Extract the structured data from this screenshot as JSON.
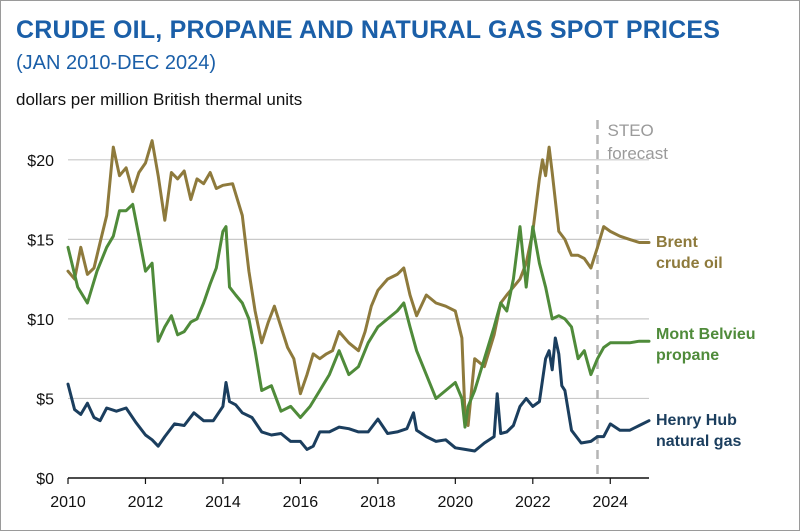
{
  "header": {
    "title": "CRUDE OIL, PROPANE AND NATURAL GAS SPOT PRICES",
    "subtitle": "(JAN 2010-DEC 2024)",
    "unit": "dollars per million British thermal units"
  },
  "chart_data": {
    "type": "line",
    "title": "CRUDE OIL, PROPANE AND NATURAL GAS SPOT PRICES",
    "subtitle": "(JAN 2010-DEC 2024)",
    "ylabel": "dollars per million British thermal units",
    "xlim": [
      2010,
      2025
    ],
    "ylim": [
      0,
      22
    ],
    "x_ticks": [
      "2010",
      "2012",
      "2014",
      "2016",
      "2018",
      "2020",
      "2022",
      "2024"
    ],
    "y_ticks": [
      "$0",
      "$5",
      "$10",
      "$15",
      "$20"
    ],
    "grid": "horizontal",
    "forecast": {
      "label_line1": "STEO",
      "label_line2": "forecast",
      "start": 2023.67
    },
    "series": [
      {
        "name": "Brent crude oil",
        "label_lines": [
          "Brent",
          "crude oil"
        ],
        "color": "#8e7a3c",
        "x": [
          2010.0,
          2010.17,
          2010.33,
          2010.5,
          2010.67,
          2010.83,
          2011.0,
          2011.17,
          2011.33,
          2011.5,
          2011.67,
          2011.83,
          2012.0,
          2012.17,
          2012.33,
          2012.5,
          2012.67,
          2012.83,
          2013.0,
          2013.17,
          2013.33,
          2013.5,
          2013.67,
          2013.83,
          2014.0,
          2014.25,
          2014.5,
          2014.67,
          2014.83,
          2015.0,
          2015.17,
          2015.33,
          2015.5,
          2015.67,
          2015.83,
          2016.0,
          2016.17,
          2016.33,
          2016.5,
          2016.67,
          2016.83,
          2017.0,
          2017.25,
          2017.5,
          2017.67,
          2017.83,
          2018.0,
          2018.25,
          2018.5,
          2018.67,
          2018.83,
          2019.0,
          2019.25,
          2019.5,
          2019.75,
          2020.0,
          2020.17,
          2020.25,
          2020.33,
          2020.5,
          2020.75,
          2021.0,
          2021.17,
          2021.33,
          2021.5,
          2021.67,
          2021.83,
          2022.0,
          2022.17,
          2022.25,
          2022.33,
          2022.42,
          2022.5,
          2022.67,
          2022.83,
          2023.0,
          2023.17,
          2023.33,
          2023.5,
          2023.67,
          2023.83,
          2024.0,
          2024.25,
          2024.5,
          2024.75,
          2025.0
        ],
        "values": [
          13.0,
          12.5,
          14.5,
          12.8,
          13.2,
          14.8,
          16.5,
          20.8,
          19.0,
          19.5,
          18.0,
          19.2,
          19.8,
          21.2,
          19.0,
          16.2,
          19.2,
          18.8,
          19.3,
          17.5,
          18.8,
          18.5,
          19.2,
          18.2,
          18.4,
          18.5,
          16.5,
          13.0,
          10.5,
          8.5,
          9.8,
          10.8,
          9.5,
          8.2,
          7.5,
          5.3,
          6.5,
          7.8,
          7.5,
          7.8,
          8.0,
          9.2,
          8.5,
          8.0,
          9.2,
          10.8,
          11.8,
          12.5,
          12.8,
          13.2,
          11.5,
          10.2,
          11.5,
          11.0,
          10.8,
          10.5,
          8.8,
          4.0,
          3.3,
          7.5,
          7.0,
          9.0,
          11.0,
          11.5,
          12.0,
          12.5,
          13.5,
          15.5,
          18.8,
          20.0,
          19.0,
          20.8,
          19.2,
          15.5,
          15.0,
          14.0,
          14.0,
          13.8,
          13.2,
          14.5,
          15.8,
          15.5,
          15.2,
          15.0,
          14.8,
          14.8
        ]
      },
      {
        "name": "Mont Belvieu propane",
        "label_lines": [
          "Mont Belvieu",
          "propane"
        ],
        "color": "#4f8b3a",
        "x": [
          2010.0,
          2010.25,
          2010.5,
          2010.75,
          2011.0,
          2011.17,
          2011.33,
          2011.5,
          2011.67,
          2011.83,
          2012.0,
          2012.17,
          2012.33,
          2012.5,
          2012.67,
          2012.83,
          2013.0,
          2013.17,
          2013.33,
          2013.5,
          2013.67,
          2013.83,
          2014.0,
          2014.08,
          2014.17,
          2014.33,
          2014.5,
          2014.67,
          2014.83,
          2015.0,
          2015.25,
          2015.5,
          2015.75,
          2016.0,
          2016.25,
          2016.5,
          2016.75,
          2017.0,
          2017.25,
          2017.5,
          2017.75,
          2018.0,
          2018.25,
          2018.5,
          2018.67,
          2018.83,
          2019.0,
          2019.25,
          2019.5,
          2019.75,
          2020.0,
          2020.17,
          2020.25,
          2020.33,
          2020.5,
          2020.75,
          2021.0,
          2021.17,
          2021.33,
          2021.5,
          2021.67,
          2021.83,
          2022.0,
          2022.17,
          2022.33,
          2022.5,
          2022.67,
          2022.83,
          2023.0,
          2023.17,
          2023.33,
          2023.5,
          2023.67,
          2023.83,
          2024.0,
          2024.25,
          2024.5,
          2024.75,
          2025.0
        ],
        "values": [
          14.5,
          12.0,
          11.0,
          13.0,
          14.5,
          15.2,
          16.8,
          16.8,
          17.2,
          15.2,
          13.0,
          13.5,
          8.6,
          9.5,
          10.2,
          9.0,
          9.2,
          9.8,
          10.0,
          11.0,
          12.2,
          13.2,
          15.5,
          15.8,
          12.0,
          11.5,
          11.0,
          10.0,
          8.0,
          5.5,
          5.8,
          4.2,
          4.5,
          3.8,
          4.5,
          5.5,
          6.5,
          8.0,
          6.5,
          7.0,
          8.5,
          9.5,
          10.0,
          10.5,
          11.0,
          9.5,
          8.0,
          6.5,
          5.0,
          5.5,
          6.0,
          5.0,
          3.2,
          4.5,
          5.5,
          7.5,
          9.5,
          11.0,
          10.5,
          12.5,
          15.8,
          12.0,
          15.8,
          13.5,
          12.0,
          10.0,
          10.2,
          10.0,
          9.5,
          7.5,
          8.0,
          6.5,
          7.5,
          8.2,
          8.5,
          8.5,
          8.5,
          8.6,
          8.6
        ]
      },
      {
        "name": "Henry Hub natural gas",
        "label_lines": [
          "Henry Hub",
          "natural gas"
        ],
        "color": "#1b3e5e",
        "x": [
          2010.0,
          2010.17,
          2010.33,
          2010.5,
          2010.67,
          2010.83,
          2011.0,
          2011.25,
          2011.5,
          2011.75,
          2012.0,
          2012.17,
          2012.33,
          2012.5,
          2012.75,
          2013.0,
          2013.25,
          2013.5,
          2013.75,
          2014.0,
          2014.08,
          2014.17,
          2014.33,
          2014.5,
          2014.75,
          2015.0,
          2015.25,
          2015.5,
          2015.75,
          2016.0,
          2016.17,
          2016.33,
          2016.5,
          2016.75,
          2017.0,
          2017.25,
          2017.5,
          2017.75,
          2018.0,
          2018.25,
          2018.5,
          2018.75,
          2018.92,
          2019.0,
          2019.25,
          2019.5,
          2019.75,
          2020.0,
          2020.25,
          2020.5,
          2020.75,
          2021.0,
          2021.08,
          2021.17,
          2021.33,
          2021.5,
          2021.67,
          2021.83,
          2022.0,
          2022.17,
          2022.33,
          2022.42,
          2022.5,
          2022.58,
          2022.67,
          2022.75,
          2022.83,
          2023.0,
          2023.25,
          2023.5,
          2023.67,
          2023.83,
          2024.0,
          2024.25,
          2024.5,
          2024.75,
          2025.0
        ],
        "values": [
          5.9,
          4.3,
          4.0,
          4.7,
          3.8,
          3.6,
          4.4,
          4.2,
          4.4,
          3.5,
          2.7,
          2.4,
          2.0,
          2.6,
          3.4,
          3.3,
          4.1,
          3.6,
          3.6,
          4.5,
          6.0,
          4.8,
          4.6,
          4.1,
          3.8,
          2.9,
          2.7,
          2.8,
          2.3,
          2.3,
          1.8,
          2.0,
          2.9,
          2.9,
          3.2,
          3.1,
          2.9,
          2.9,
          3.7,
          2.8,
          2.9,
          3.1,
          4.1,
          3.0,
          2.6,
          2.3,
          2.4,
          1.9,
          1.8,
          1.7,
          2.2,
          2.6,
          5.3,
          2.8,
          2.9,
          3.3,
          4.5,
          5.0,
          4.5,
          4.8,
          7.5,
          8.0,
          6.8,
          8.8,
          7.8,
          5.8,
          5.5,
          3.0,
          2.2,
          2.3,
          2.6,
          2.6,
          3.4,
          3.0,
          3.0,
          3.3,
          3.6
        ]
      }
    ]
  }
}
